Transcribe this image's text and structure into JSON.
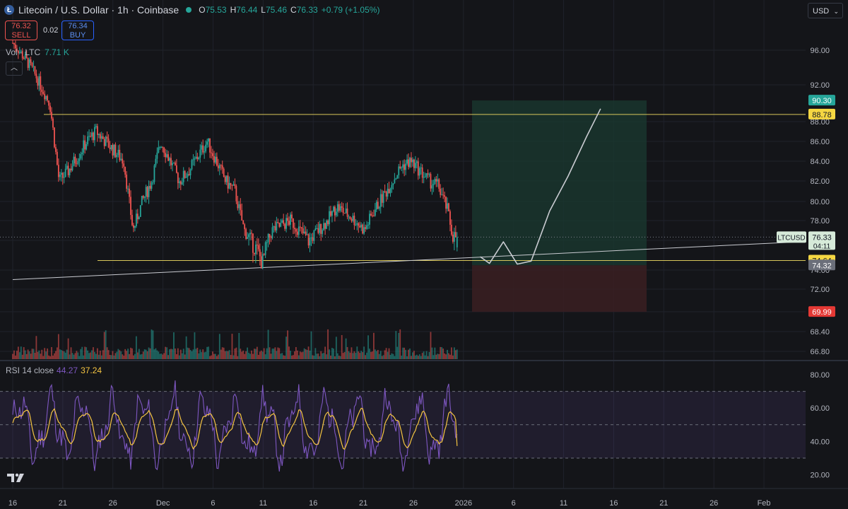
{
  "header": {
    "symbol_icon": "litecoin-icon",
    "title": "Litecoin / U.S. Dollar · 1h · Coinbase",
    "ohlc": [
      {
        "k": "O",
        "v": "75.53"
      },
      {
        "k": "H",
        "v": "76.44"
      },
      {
        "k": "L",
        "v": "75.46"
      },
      {
        "k": "C",
        "v": "76.33"
      }
    ],
    "change": "+0.79 (+1.05%)"
  },
  "trade": {
    "sell_price": "76.32",
    "sell_label": "SELL",
    "spread": "0.02",
    "buy_price": "76.34",
    "buy_label": "BUY"
  },
  "volume_label": {
    "name": "Vol · LTC",
    "value": "7.71 K"
  },
  "currency": "USD",
  "rsi_label": {
    "name": "RSI 14 close",
    "rsi": "44.27",
    "ma": "37.24"
  },
  "colors": {
    "bg": "#141519",
    "up": "#26a69a",
    "down": "#ef5350",
    "grid": "#1f222b",
    "hline": "#d8c65a",
    "rsi": "#7e57c2",
    "rsi_ma": "#f5c542",
    "target_fill": "#1a3a30",
    "stop_fill": "#3a1e22"
  },
  "chart_data": [
    {
      "type": "candlestick",
      "title": "Litecoin / U.S. Dollar · 1h · Coinbase",
      "x_ticks": [
        "16",
        "21",
        "26",
        "Dec",
        "6",
        "11",
        "16",
        "21",
        "26",
        "2026",
        "6",
        "11",
        "16",
        "21",
        "26",
        "Feb"
      ],
      "y_ticks": [
        "96.00",
        "92.00",
        "88.00",
        "86.00",
        "84.00",
        "82.00",
        "80.00",
        "78.00",
        "76.00",
        "74.00",
        "72.00",
        "70.00",
        "68.40",
        "66.80"
      ],
      "price_path": [
        {
          "t": 0,
          "p": 97
        },
        {
          "t": 2,
          "p": 94
        },
        {
          "t": 4,
          "p": 90
        },
        {
          "t": 5,
          "p": 82
        },
        {
          "t": 6,
          "p": 83
        },
        {
          "t": 8,
          "p": 86
        },
        {
          "t": 9,
          "p": 87
        },
        {
          "t": 10,
          "p": 86
        },
        {
          "t": 11,
          "p": 85
        },
        {
          "t": 12,
          "p": 84
        },
        {
          "t": 13,
          "p": 77
        },
        {
          "t": 14,
          "p": 80
        },
        {
          "t": 15,
          "p": 82
        },
        {
          "t": 16,
          "p": 86
        },
        {
          "t": 17,
          "p": 84
        },
        {
          "t": 18,
          "p": 82
        },
        {
          "t": 19,
          "p": 83
        },
        {
          "t": 21,
          "p": 86
        },
        {
          "t": 22,
          "p": 84
        },
        {
          "t": 23,
          "p": 82
        },
        {
          "t": 24,
          "p": 81
        },
        {
          "t": 25,
          "p": 77
        },
        {
          "t": 27,
          "p": 74.5
        },
        {
          "t": 28,
          "p": 77
        },
        {
          "t": 30,
          "p": 78
        },
        {
          "t": 32,
          "p": 76
        },
        {
          "t": 34,
          "p": 78
        },
        {
          "t": 35,
          "p": 79.5
        },
        {
          "t": 37,
          "p": 78
        },
        {
          "t": 38,
          "p": 77
        },
        {
          "t": 39,
          "p": 79
        },
        {
          "t": 41,
          "p": 82
        },
        {
          "t": 42,
          "p": 83.5
        },
        {
          "t": 43,
          "p": 84
        },
        {
          "t": 44,
          "p": 83
        },
        {
          "t": 45,
          "p": 82
        },
        {
          "t": 46,
          "p": 81.5
        },
        {
          "t": 47,
          "p": 79
        },
        {
          "t": 47.5,
          "p": 76.5
        },
        {
          "t": 48,
          "p": 76.33
        }
      ],
      "ohlc_last": {
        "open": 75.53,
        "high": 76.44,
        "low": 75.46,
        "close": 76.33
      },
      "volume_last": "7.71 K",
      "horizontal_lines": [
        88.78,
        74.64
      ],
      "trendline": {
        "from": {
          "t": 0,
          "p": 73.0
        },
        "to": {
          "t": 85,
          "p": 75.9
        }
      },
      "long_position": {
        "entry": 74.32,
        "target": 90.3,
        "stop": 69.99
      },
      "projection_path": [
        {
          "t": 50.5,
          "p": 74.9
        },
        {
          "t": 51.5,
          "p": 74.45
        },
        {
          "t": 53,
          "p": 75.9
        },
        {
          "t": 54.5,
          "p": 74.4
        },
        {
          "t": 56,
          "p": 74.6
        },
        {
          "t": 58,
          "p": 79
        },
        {
          "t": 60,
          "p": 82.5
        },
        {
          "t": 62,
          "p": 86.5
        },
        {
          "t": 63.5,
          "p": 89.4
        }
      ],
      "price_labels": [
        {
          "text": "90.30",
          "value": 90.3,
          "kind": "target"
        },
        {
          "text": "88.78",
          "value": 88.78,
          "kind": "hline"
        },
        {
          "text": "LTCUSD",
          "value": 76.33,
          "kind": "symbol"
        },
        {
          "text": "76.33",
          "value": 76.33,
          "kind": "last"
        },
        {
          "text": "04:11",
          "value": 76.33,
          "kind": "countdown"
        },
        {
          "text": "74.64",
          "value": 74.64,
          "kind": "hline"
        },
        {
          "text": "74.32",
          "value": 74.32,
          "kind": "entry"
        },
        {
          "text": "69.99",
          "value": 69.99,
          "kind": "stop"
        }
      ]
    },
    {
      "type": "line",
      "title": "RSI 14 close",
      "series": [
        {
          "name": "RSI",
          "last": 44.27
        },
        {
          "name": "RSI-based MA",
          "last": 37.24
        }
      ],
      "y_ticks": [
        "80.00",
        "60.00",
        "40.00",
        "20.00"
      ],
      "bands": {
        "upper": 70,
        "middle": 50,
        "lower": 30
      },
      "ylim": [
        15,
        85
      ]
    }
  ]
}
